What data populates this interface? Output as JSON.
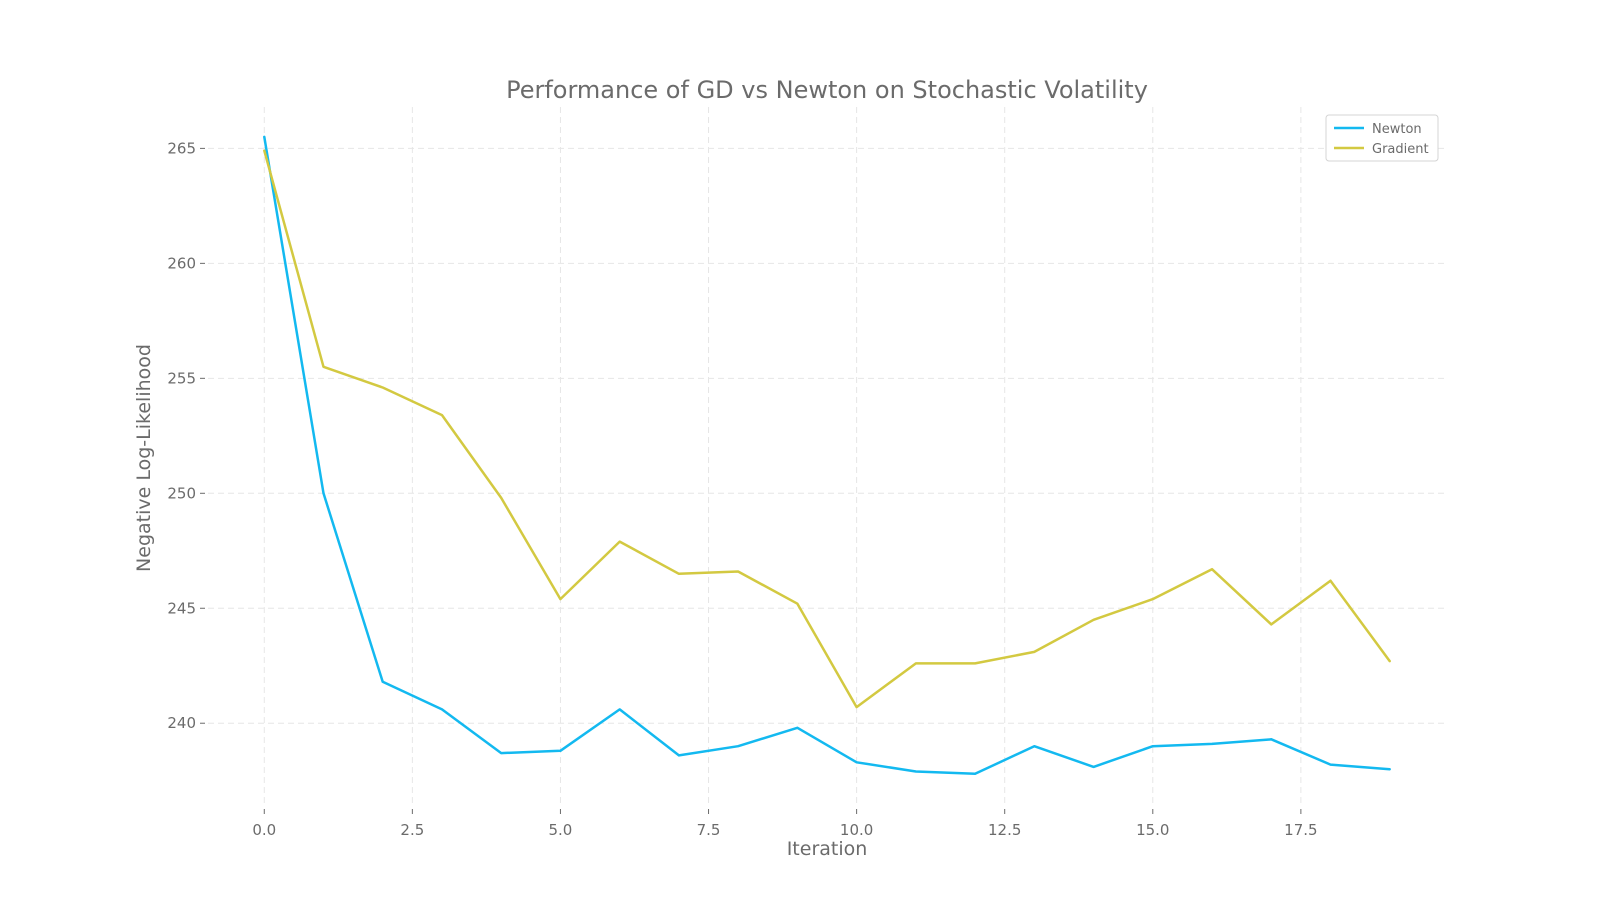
{
  "chart_data": {
    "type": "line",
    "title": "Performance of GD vs Newton on Stochastic Volatility",
    "xlabel": "Iteration",
    "ylabel": "Negative Log-Likelihood",
    "x": [
      0,
      1,
      2,
      3,
      4,
      5,
      6,
      7,
      8,
      9,
      10,
      11,
      12,
      13,
      14,
      15,
      16,
      17,
      18,
      19
    ],
    "xlim": [
      -0.95,
      19.95
    ],
    "ylim": [
      236.4,
      266.8
    ],
    "xticks": [
      0.0,
      2.5,
      5.0,
      7.5,
      10.0,
      12.5,
      15.0,
      17.5
    ],
    "xtick_labels": [
      "0.0",
      "2.5",
      "5.0",
      "7.5",
      "10.0",
      "12.5",
      "15.0",
      "17.5"
    ],
    "yticks": [
      240,
      245,
      250,
      255,
      260,
      265
    ],
    "ytick_labels": [
      "240",
      "245",
      "250",
      "255",
      "260",
      "265"
    ],
    "grid": true,
    "legend_position": "top-right",
    "series": [
      {
        "name": "Newton",
        "color": "#13b9f0",
        "values": [
          265.5,
          250.0,
          241.8,
          240.6,
          238.7,
          238.8,
          240.6,
          238.6,
          239.0,
          239.8,
          238.3,
          237.9,
          237.8,
          239.0,
          238.1,
          239.0,
          239.1,
          239.3,
          238.2,
          238.0
        ]
      },
      {
        "name": "Gradient",
        "color": "#d3c941",
        "values": [
          264.9,
          255.5,
          254.6,
          253.4,
          249.8,
          245.4,
          247.9,
          246.5,
          246.6,
          245.2,
          240.7,
          242.6,
          242.6,
          243.1,
          244.5,
          245.4,
          246.7,
          244.3,
          246.2,
          242.7
        ]
      }
    ]
  }
}
